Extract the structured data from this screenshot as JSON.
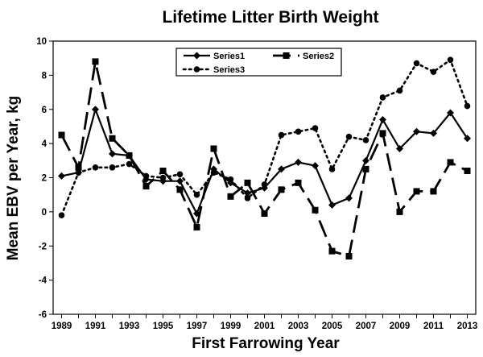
{
  "chart_data": {
    "type": "line",
    "title": "Lifetime Litter Birth Weight",
    "xlabel": "First Farrowing Year",
    "ylabel": "Mean EBV per Year, kg",
    "x": [
      1989,
      1990,
      1991,
      1992,
      1993,
      1994,
      1995,
      1996,
      1997,
      1998,
      1999,
      2000,
      2001,
      2002,
      2003,
      2004,
      2005,
      2006,
      2007,
      2008,
      2009,
      2010,
      2011,
      2012,
      2013
    ],
    "xlim": [
      1988.5,
      2013.5
    ],
    "ylim": [
      -6,
      10
    ],
    "x_tick_labels": [
      "1989",
      "1991",
      "1993",
      "1995",
      "1997",
      "1999",
      "2001",
      "2003",
      "2005",
      "2007",
      "2009",
      "2011",
      "2013"
    ],
    "y_tick_labels": [
      "-6",
      "-4",
      "-2",
      "0",
      "2",
      "4",
      "6",
      "8",
      "10"
    ],
    "grid": false,
    "legend_position": "top-center",
    "series": [
      {
        "name": "Series1",
        "color": "#000000",
        "marker": "diamond",
        "line": "solid",
        "values": [
          2.1,
          2.3,
          6.0,
          3.4,
          3.3,
          1.9,
          1.8,
          1.8,
          -0.1,
          2.5,
          1.7,
          1.1,
          1.4,
          2.5,
          2.9,
          2.7,
          0.4,
          0.8,
          3.0,
          5.4,
          3.7,
          4.7,
          4.6,
          5.8,
          4.3
        ]
      },
      {
        "name": "Series2",
        "color": "#000000",
        "marker": "square",
        "line": "dash",
        "values": [
          4.5,
          2.6,
          8.8,
          4.3,
          3.3,
          1.5,
          2.4,
          1.3,
          -0.9,
          3.7,
          0.9,
          1.7,
          -0.1,
          1.3,
          1.7,
          0.1,
          -2.3,
          -2.6,
          2.5,
          4.6,
          0.0,
          1.2,
          1.2,
          2.9,
          2.4
        ]
      },
      {
        "name": "Series3",
        "color": "#000000",
        "marker": "circle",
        "line": "dot",
        "values": [
          -0.2,
          2.3,
          2.6,
          2.6,
          2.8,
          2.1,
          2.0,
          2.2,
          1.0,
          2.3,
          1.9,
          0.8,
          1.6,
          4.5,
          4.7,
          4.9,
          2.5,
          4.4,
          4.2,
          6.7,
          7.1,
          8.7,
          8.2,
          8.9,
          6.2
        ]
      }
    ]
  }
}
